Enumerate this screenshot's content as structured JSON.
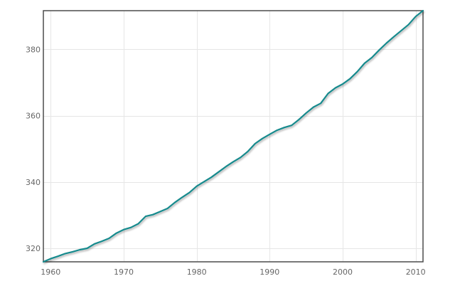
{
  "chart_data": {
    "type": "line",
    "title": "",
    "xlabel": "",
    "ylabel": "",
    "x": [
      1959,
      1960,
      1961,
      1962,
      1963,
      1964,
      1965,
      1966,
      1967,
      1968,
      1969,
      1970,
      1971,
      1972,
      1973,
      1974,
      1975,
      1976,
      1977,
      1978,
      1979,
      1980,
      1981,
      1982,
      1983,
      1984,
      1985,
      1986,
      1987,
      1988,
      1989,
      1990,
      1991,
      1992,
      1993,
      1994,
      1995,
      1996,
      1997,
      1998,
      1999,
      2000,
      2001,
      2002,
      2003,
      2004,
      2005,
      2006,
      2007,
      2008,
      2009,
      2010,
      2011
    ],
    "series": [
      {
        "name": "",
        "values": [
          315.97,
          316.91,
          317.64,
          318.45,
          318.99,
          319.62,
          320.04,
          321.38,
          322.16,
          323.04,
          324.62,
          325.68,
          326.32,
          327.45,
          329.68,
          330.18,
          331.11,
          332.04,
          333.83,
          335.4,
          336.84,
          338.75,
          340.11,
          341.45,
          343.05,
          344.65,
          346.12,
          347.42,
          349.19,
          351.57,
          353.12,
          354.39,
          355.61,
          356.45,
          357.1,
          358.83,
          360.82,
          362.61,
          363.73,
          366.7,
          368.38,
          369.55,
          371.14,
          373.28,
          375.8,
          377.52,
          379.8,
          381.9,
          383.79,
          385.6,
          387.43,
          389.9,
          391.65
        ]
      }
    ],
    "xlim": [
      1959,
      2011
    ],
    "ylim": [
      315.97,
      391.65
    ],
    "xticks": [
      1960,
      1970,
      1980,
      1990,
      2000,
      2010
    ],
    "yticks": [
      320,
      340,
      360,
      380
    ],
    "grid": true,
    "legend_position": "none",
    "colors": {
      "line": "#188a8d",
      "grid": "#e6e6e6",
      "frame": "#4c4c4c",
      "tick_label": "#666666",
      "background": "#ffffff"
    }
  }
}
